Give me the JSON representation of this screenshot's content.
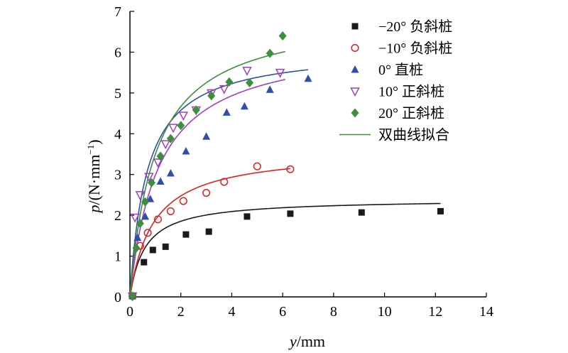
{
  "chart_data": {
    "type": "scatter",
    "xlabel_var": "y",
    "xlabel_unit": "/mm",
    "ylabel_var": "p",
    "ylabel_unit": "/(N·mm",
    "ylabel_sup": "−1",
    "ylabel_close": ")",
    "xlim": [
      0,
      14
    ],
    "ylim": [
      0,
      7
    ],
    "xticks": [
      0,
      2,
      4,
      6,
      8,
      10,
      12,
      14
    ],
    "yticks": [
      0,
      1,
      2,
      3,
      4,
      5,
      6,
      7
    ],
    "grid": false,
    "legend_position": "top-right",
    "series": [
      {
        "name": "−20° 负斜桩",
        "marker": "square",
        "color": "#1a1a1a",
        "x": [
          0.1,
          0.55,
          0.9,
          1.4,
          2.2,
          3.1,
          4.6,
          6.3,
          9.1,
          12.2
        ],
        "y": [
          0.02,
          0.85,
          1.15,
          1.23,
          1.53,
          1.6,
          1.97,
          2.04,
          2.07,
          2.1
        ]
      },
      {
        "name": "−10° 负斜桩",
        "marker": "circle-open",
        "color": "#e02020",
        "x": [
          0.1,
          0.4,
          0.7,
          1.1,
          1.6,
          2.1,
          3.0,
          3.7,
          5.0,
          6.3
        ],
        "y": [
          0.02,
          1.25,
          1.57,
          1.9,
          2.1,
          2.35,
          2.55,
          2.82,
          3.2,
          3.13
        ]
      },
      {
        "name": "0° 直桩",
        "marker": "triangle",
        "color": "#2f4fa8",
        "x": [
          0.1,
          0.3,
          0.6,
          0.8,
          1.2,
          1.6,
          2.2,
          3.0,
          3.8,
          4.5,
          5.5,
          7.0
        ],
        "y": [
          0.02,
          1.45,
          1.97,
          2.4,
          2.83,
          3.03,
          3.57,
          3.93,
          4.52,
          4.67,
          5.08,
          5.35
        ]
      },
      {
        "name": "10° 正斜桩",
        "marker": "triangle-down-open",
        "color": "#a040c0",
        "x": [
          0.1,
          0.2,
          0.4,
          0.75,
          1.1,
          1.4,
          1.7,
          2.1,
          2.6,
          3.2,
          3.7,
          4.6,
          5.9
        ],
        "y": [
          0.02,
          1.95,
          2.5,
          2.95,
          3.3,
          3.75,
          4.15,
          4.45,
          4.58,
          5.0,
          5.1,
          5.55,
          5.5
        ]
      },
      {
        "name": "20° 正斜桩",
        "marker": "diamond",
        "color": "#3c8f3c",
        "x": [
          0.1,
          0.25,
          0.4,
          0.6,
          0.85,
          1.2,
          1.6,
          2.0,
          2.6,
          3.2,
          3.9,
          4.7,
          5.5,
          6.0
        ],
        "y": [
          0.02,
          1.2,
          1.8,
          2.33,
          2.8,
          3.45,
          3.88,
          4.2,
          4.58,
          4.93,
          5.27,
          5.25,
          5.97,
          6.4
        ]
      }
    ],
    "fits": [
      {
        "series_index": 0,
        "color": "#1a1a1a",
        "a": 2.4,
        "b": 1.7,
        "x_max": 12.2
      },
      {
        "series_index": 1,
        "color": "#e02020",
        "a": 3.6,
        "b": 1.1,
        "x_max": 6.3
      },
      {
        "series_index": 2,
        "color": "#2f4fa8",
        "a": 6.1,
        "b": 1.5,
        "x_max": 7.0
      },
      {
        "series_index": 3,
        "color": "#a040c0",
        "a": 6.3,
        "b": 0.9,
        "x_max": 6.1
      },
      {
        "series_index": 4,
        "color": "#3c8f3c",
        "a": 7.0,
        "b": 1.0,
        "x_max": 6.1
      }
    ],
    "legend_fit_label": "双曲线拟合",
    "legend_fit_color": "#3c8f3c"
  }
}
